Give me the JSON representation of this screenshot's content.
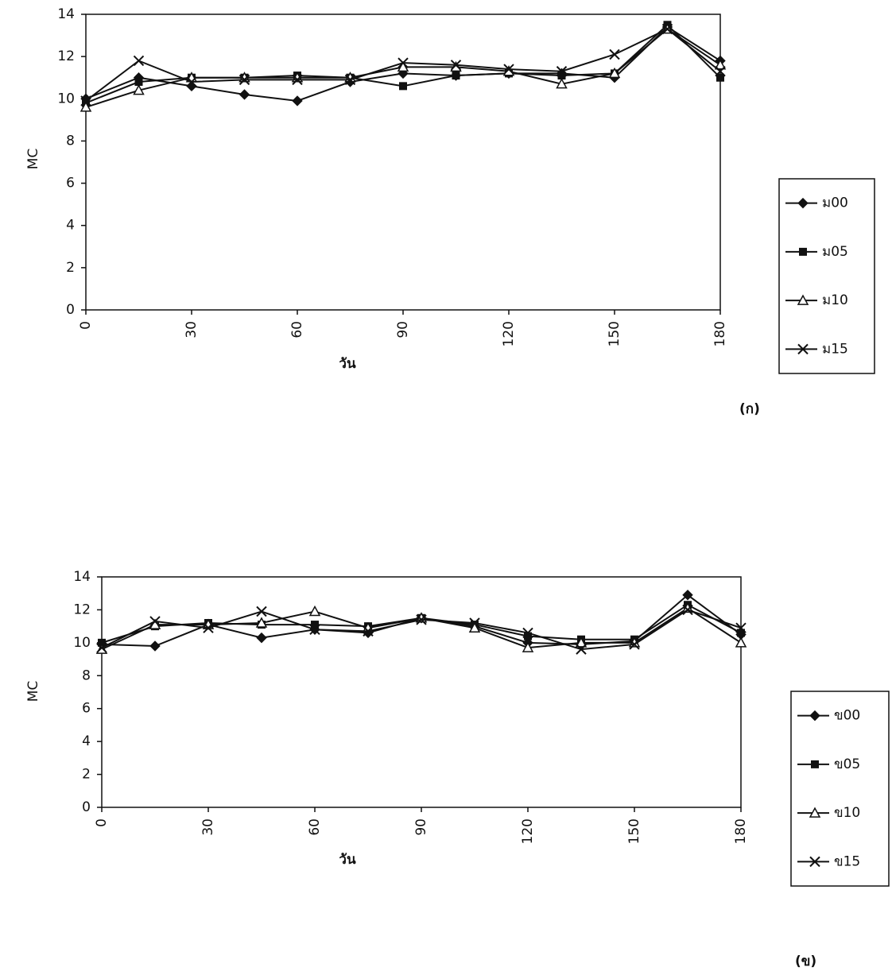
{
  "chart_data": [
    {
      "type": "line",
      "panel_label": "(ก)",
      "x_label": "วัน",
      "y_label": "MC",
      "x": [
        0,
        15,
        30,
        45,
        60,
        75,
        90,
        105,
        120,
        135,
        150,
        165,
        180
      ],
      "xlim": [
        0,
        180
      ],
      "xticks": [
        0,
        30,
        60,
        90,
        120,
        150,
        180
      ],
      "ylim": [
        0,
        14
      ],
      "yticks": [
        0,
        2,
        4,
        6,
        8,
        10,
        12,
        14
      ],
      "legend": "right",
      "series": [
        {
          "name": "ม00",
          "color": "#111111",
          "marker": "diamond",
          "values": [
            10.0,
            11.0,
            10.6,
            10.2,
            9.9,
            10.8,
            11.2,
            11.1,
            11.2,
            11.2,
            11.0,
            13.4,
            11.8
          ]
        },
        {
          "name": "ม05",
          "color": "#111111",
          "marker": "square",
          "values": [
            9.8,
            10.8,
            11.0,
            11.0,
            11.1,
            11.0,
            10.6,
            11.1,
            11.2,
            11.1,
            11.2,
            13.5,
            11.0
          ]
        },
        {
          "name": "ม10",
          "color": "#111111",
          "marker": "triangle",
          "values": [
            9.6,
            10.4,
            11.0,
            11.0,
            11.0,
            11.0,
            11.5,
            11.5,
            11.3,
            10.7,
            11.2,
            13.3,
            11.6
          ]
        },
        {
          "name": "ม15",
          "color": "#111111",
          "marker": "x",
          "values": [
            9.9,
            11.8,
            10.8,
            10.9,
            10.9,
            10.9,
            11.7,
            11.6,
            11.4,
            11.3,
            12.1,
            13.3,
            11.3
          ]
        }
      ]
    },
    {
      "type": "line",
      "panel_label": "(ข)",
      "x_label": "วัน",
      "y_label": "MC",
      "x": [
        0,
        15,
        30,
        45,
        60,
        75,
        90,
        105,
        120,
        135,
        150,
        165,
        180
      ],
      "xlim": [
        0,
        180
      ],
      "xticks": [
        0,
        30,
        60,
        90,
        120,
        150,
        180
      ],
      "ylim": [
        0,
        14
      ],
      "yticks": [
        0,
        2,
        4,
        6,
        8,
        10,
        12,
        14
      ],
      "legend": "right",
      "series": [
        {
          "name": "ข00",
          "color": "#111111",
          "marker": "diamond",
          "values": [
            9.9,
            9.8,
            11.1,
            10.3,
            10.8,
            10.6,
            11.5,
            11.0,
            10.0,
            9.9,
            10.1,
            12.9,
            10.5
          ]
        },
        {
          "name": "ข05",
          "color": "#111111",
          "marker": "square",
          "values": [
            10.0,
            11.0,
            11.2,
            11.1,
            11.1,
            11.0,
            11.5,
            11.1,
            10.4,
            10.2,
            10.2,
            12.3,
            10.6
          ]
        },
        {
          "name": "ข10",
          "color": "#111111",
          "marker": "triangle",
          "values": [
            9.6,
            11.1,
            11.1,
            11.2,
            11.9,
            10.9,
            11.5,
            10.9,
            9.7,
            10.0,
            10.0,
            12.1,
            10.0
          ]
        },
        {
          "name": "ข15",
          "color": "#111111",
          "marker": "x",
          "values": [
            9.7,
            11.3,
            10.9,
            11.9,
            10.8,
            10.7,
            11.4,
            11.2,
            10.6,
            9.6,
            9.9,
            12.0,
            10.9
          ]
        }
      ]
    }
  ]
}
